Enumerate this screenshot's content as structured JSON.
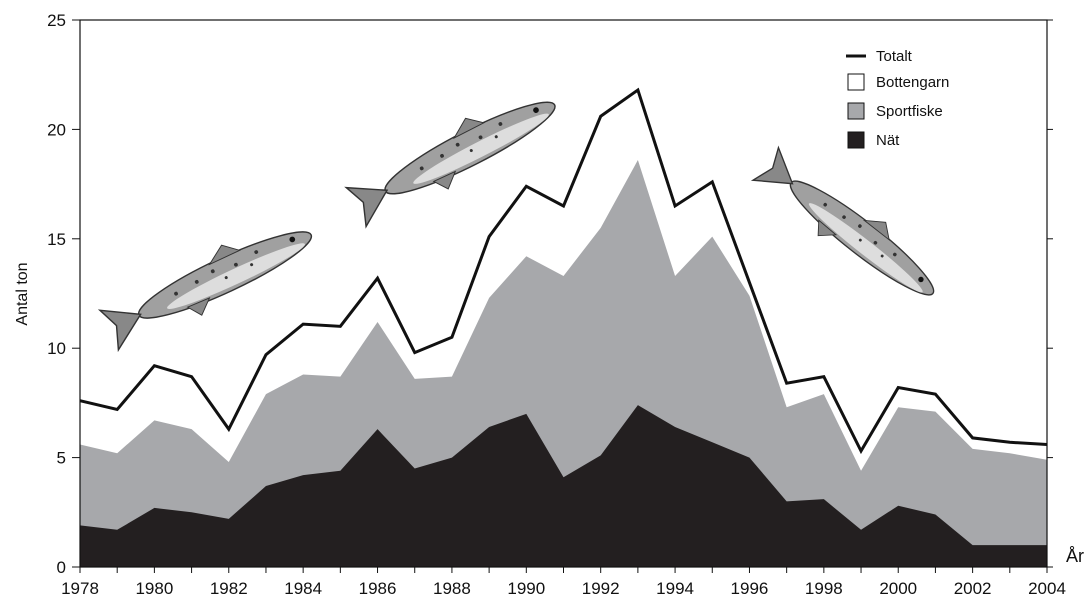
{
  "chart_data": {
    "type": "area",
    "title": "",
    "xlabel": "År",
    "ylabel": "Antal ton",
    "xlim": [
      1978,
      2004
    ],
    "ylim": [
      0,
      25
    ],
    "grid": false,
    "legend_position": "top-right",
    "x": [
      1978,
      1979,
      1980,
      1981,
      1982,
      1983,
      1984,
      1985,
      1986,
      1987,
      1988,
      1989,
      1990,
      1991,
      1992,
      1993,
      1994,
      1995,
      1996,
      1997,
      1998,
      1999,
      2000,
      2001,
      2002,
      2003,
      2004
    ],
    "x_ticks": [
      "1978",
      "1980",
      "1982",
      "1984",
      "1986",
      "1988",
      "1990",
      "1992",
      "1994",
      "1996",
      "1998",
      "2000",
      "2002",
      "2004"
    ],
    "y_ticks": [
      "0",
      "5",
      "10",
      "15",
      "20",
      "25"
    ],
    "series": [
      {
        "name": "Totalt",
        "style": "line",
        "color": "#111111",
        "values": [
          7.6,
          7.2,
          9.2,
          8.7,
          6.3,
          9.7,
          11.1,
          11.0,
          13.2,
          9.8,
          10.5,
          15.1,
          17.4,
          16.5,
          20.6,
          21.8,
          16.5,
          17.6,
          13.0,
          8.4,
          8.7,
          5.3,
          8.2,
          7.9,
          5.9,
          5.7,
          5.6
        ]
      },
      {
        "name": "Bottengarn",
        "style": "area",
        "color": "#ffffff",
        "values": [
          7.6,
          7.2,
          9.2,
          8.7,
          6.3,
          9.7,
          11.1,
          11.0,
          13.2,
          9.8,
          10.5,
          15.1,
          17.4,
          16.5,
          20.6,
          21.8,
          16.5,
          17.6,
          13.0,
          8.4,
          8.7,
          5.3,
          8.2,
          7.9,
          5.9,
          5.7,
          5.6
        ]
      },
      {
        "name": "Sportfiske",
        "style": "area",
        "color": "#a7a8ab",
        "values": [
          5.6,
          5.2,
          6.7,
          6.3,
          4.8,
          7.9,
          8.8,
          8.7,
          11.2,
          8.6,
          8.7,
          12.3,
          14.2,
          13.3,
          15.5,
          18.6,
          13.3,
          15.1,
          12.4,
          7.3,
          7.9,
          4.4,
          7.3,
          7.1,
          5.4,
          5.2,
          4.9
        ]
      },
      {
        "name": "Nät",
        "style": "area",
        "color": "#231f20",
        "values": [
          1.9,
          1.7,
          2.7,
          2.5,
          2.2,
          3.7,
          4.2,
          4.4,
          6.3,
          4.5,
          5.0,
          6.4,
          7.0,
          4.1,
          5.1,
          7.4,
          6.4,
          5.7,
          5.0,
          3.0,
          3.1,
          1.7,
          2.8,
          2.4,
          1.0,
          1.0,
          1.0
        ]
      }
    ],
    "images": [
      "salmon-icon",
      "salmon-icon",
      "salmon-icon"
    ]
  }
}
